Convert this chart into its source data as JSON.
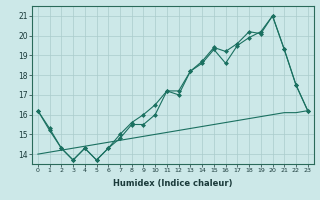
{
  "xlabel": "Humidex (Indice chaleur)",
  "background_color": "#cce8e8",
  "grid_color": "#aacccc",
  "line_color": "#1a7060",
  "xlim": [
    -0.5,
    23.5
  ],
  "ylim": [
    13.5,
    21.5
  ],
  "yticks": [
    14,
    15,
    16,
    17,
    18,
    19,
    20,
    21
  ],
  "xticks": [
    0,
    1,
    2,
    3,
    4,
    5,
    6,
    7,
    8,
    9,
    10,
    11,
    12,
    13,
    14,
    15,
    16,
    17,
    18,
    19,
    20,
    21,
    22,
    23
  ],
  "series1_x": [
    0,
    1,
    2,
    3,
    4,
    5,
    6,
    7,
    8,
    9,
    10,
    11,
    12,
    13,
    14,
    15,
    16,
    17,
    18,
    19,
    20,
    21,
    22,
    23
  ],
  "series1_y": [
    16.2,
    15.3,
    14.3,
    13.7,
    14.3,
    13.7,
    14.3,
    14.8,
    15.5,
    15.5,
    16.0,
    17.2,
    17.0,
    18.2,
    18.6,
    19.3,
    18.6,
    19.5,
    19.9,
    20.2,
    21.0,
    19.3,
    17.5,
    16.2
  ],
  "series2_x": [
    0,
    1,
    2,
    3,
    4,
    5,
    6,
    7,
    8,
    9,
    10,
    11,
    12,
    13,
    14,
    15,
    16,
    17,
    18,
    19,
    20,
    21,
    22,
    23
  ],
  "series2_y": [
    16.2,
    15.2,
    14.3,
    13.7,
    14.3,
    13.7,
    14.3,
    15.0,
    15.6,
    16.0,
    16.5,
    17.2,
    17.2,
    18.2,
    18.7,
    19.4,
    19.2,
    19.6,
    20.2,
    20.1,
    21.0,
    19.3,
    17.5,
    16.2
  ],
  "series3_x": [
    0,
    1,
    2,
    3,
    4,
    5,
    6,
    7,
    8,
    9,
    10,
    11,
    12,
    13,
    14,
    15,
    16,
    17,
    18,
    19,
    20,
    21,
    22,
    23
  ],
  "series3_y": [
    14.0,
    14.1,
    14.2,
    14.3,
    14.4,
    14.5,
    14.6,
    14.7,
    14.8,
    14.9,
    15.0,
    15.1,
    15.2,
    15.3,
    15.4,
    15.5,
    15.6,
    15.7,
    15.8,
    15.9,
    16.0,
    16.1,
    16.1,
    16.2
  ]
}
